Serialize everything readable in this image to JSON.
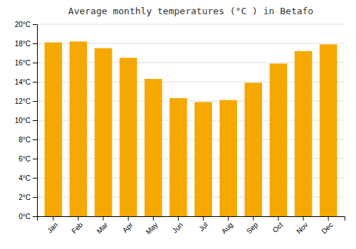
{
  "chart_data": {
    "type": "bar",
    "title": "Average monthly temperatures (°C ) in Betafo",
    "categories": [
      "Jan",
      "Feb",
      "Mar",
      "Apr",
      "May",
      "Jun",
      "Jul",
      "Aug",
      "Sep",
      "Oct",
      "Nov",
      "Dec"
    ],
    "values": [
      18.1,
      18.2,
      17.5,
      16.5,
      14.3,
      12.3,
      11.9,
      12.1,
      13.9,
      15.9,
      17.2,
      17.9
    ],
    "color": "#F5A800",
    "ylim": [
      0,
      20
    ],
    "yticks": [
      {
        "value": 0,
        "label": "0°C"
      },
      {
        "value": 2,
        "label": "2°C"
      },
      {
        "value": 4,
        "label": "4°C"
      },
      {
        "value": 6,
        "label": "6°C"
      },
      {
        "value": 8,
        "label": "8°C"
      },
      {
        "value": 10,
        "label": "10°C"
      },
      {
        "value": 12,
        "label": "12°C"
      },
      {
        "value": 14,
        "label": "14°C"
      },
      {
        "value": 16,
        "label": "16°C"
      },
      {
        "value": 18,
        "label": "18°C"
      },
      {
        "value": 20,
        "label": "20°C"
      }
    ],
    "grid": true
  }
}
